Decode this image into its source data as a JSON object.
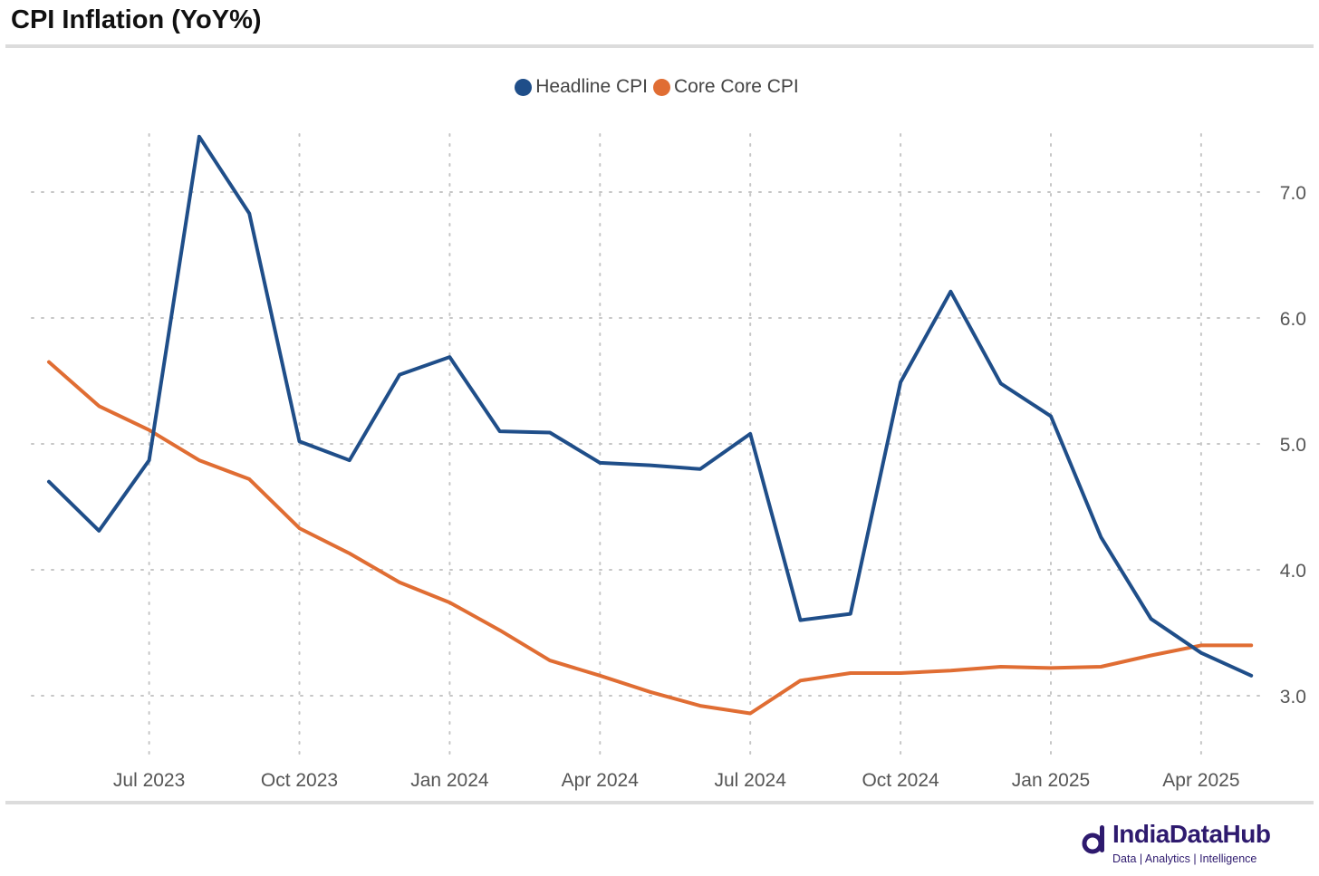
{
  "title": "CPI Inflation (YoY%)",
  "logo": {
    "name": "IndiaDataHub",
    "tagline": "Data | Analytics | Intelligence"
  },
  "colors": {
    "headline": "#1f4e89",
    "core": "#e06d33",
    "grid": "#c6c6c6",
    "axis_text": "#555555"
  },
  "chart_data": {
    "type": "line",
    "title": "CPI Inflation (YoY%)",
    "xlabel": "",
    "ylabel": "",
    "x": [
      "May 2023",
      "Jun 2023",
      "Jul 2023",
      "Aug 2023",
      "Sep 2023",
      "Oct 2023",
      "Nov 2023",
      "Dec 2023",
      "Jan 2024",
      "Feb 2024",
      "Mar 2024",
      "Apr 2024",
      "May 2024",
      "Jun 2024",
      "Jul 2024",
      "Aug 2024",
      "Sep 2024",
      "Oct 2024",
      "Nov 2024",
      "Dec 2024",
      "Jan 2025",
      "Feb 2025",
      "Mar 2025",
      "Apr 2025",
      "May 2025"
    ],
    "x_ticks": [
      "Jul 2023",
      "Oct 2023",
      "Jan 2024",
      "Apr 2024",
      "Jul 2024",
      "Oct 2024",
      "Jan 2025",
      "Apr 2025"
    ],
    "ylim": [
      2.5,
      7.5
    ],
    "y_ticks": [
      "3.0",
      "4.0",
      "5.0",
      "6.0",
      "7.0"
    ],
    "y_axis_position": "right",
    "grid": true,
    "legend_position": "top-center",
    "series": [
      {
        "name": "Headline CPI",
        "color": "#1f4e89",
        "values": [
          4.7,
          4.31,
          4.87,
          7.44,
          6.83,
          5.02,
          4.87,
          5.55,
          5.69,
          5.1,
          5.09,
          4.85,
          4.83,
          4.8,
          5.08,
          3.6,
          3.65,
          5.49,
          6.21,
          5.48,
          5.22,
          4.26,
          3.61,
          3.34,
          3.16
        ]
      },
      {
        "name": "Core Core CPI",
        "color": "#e06d33",
        "values": [
          5.65,
          5.3,
          5.11,
          4.87,
          4.72,
          4.33,
          4.13,
          3.9,
          3.74,
          3.52,
          3.28,
          3.16,
          3.03,
          2.92,
          2.86,
          3.12,
          3.18,
          3.18,
          3.2,
          3.23,
          3.22,
          3.23,
          3.32,
          3.4,
          3.4
        ]
      }
    ]
  }
}
